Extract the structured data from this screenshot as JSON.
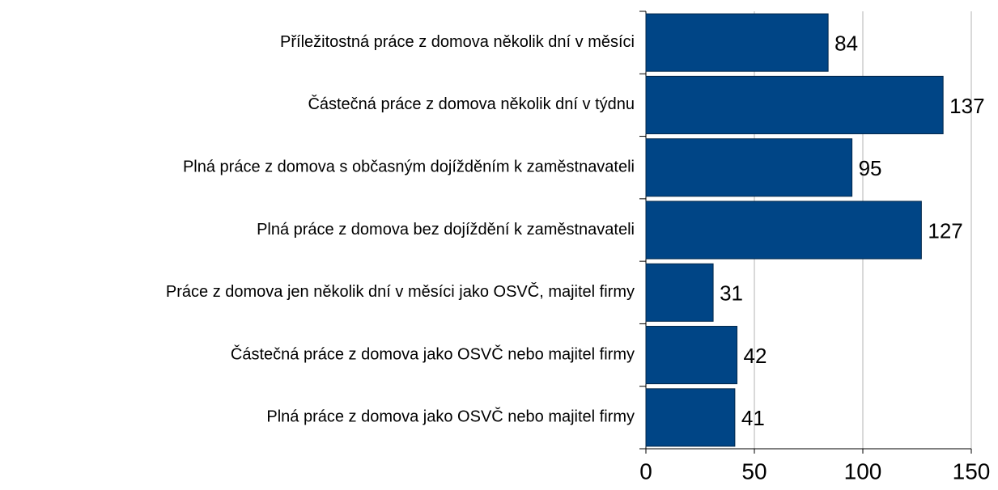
{
  "chart_data": {
    "type": "bar",
    "orientation": "horizontal",
    "categories": [
      "Příležitostná práce z domova několik dní v měsíci",
      "Částečná práce z domova několik dní v týdnu",
      "Plná práce z domova s občasným dojížděním k zaměstnavateli",
      "Plná práce z domova bez dojíždění k zaměstnavateli",
      "Práce z domova jen  několik dní v měsíci jako OSVČ,  majitel firmy",
      "Částečná práce z domova jako OSVČ nebo majitel firmy",
      "Plná práce z domova jako OSVČ nebo majitel firmy"
    ],
    "values": [
      84,
      137,
      95,
      127,
      31,
      42,
      41
    ],
    "color": "#004586",
    "xlim": [
      0,
      150
    ],
    "xticks": [
      0,
      50,
      100,
      150
    ],
    "grid": true
  }
}
